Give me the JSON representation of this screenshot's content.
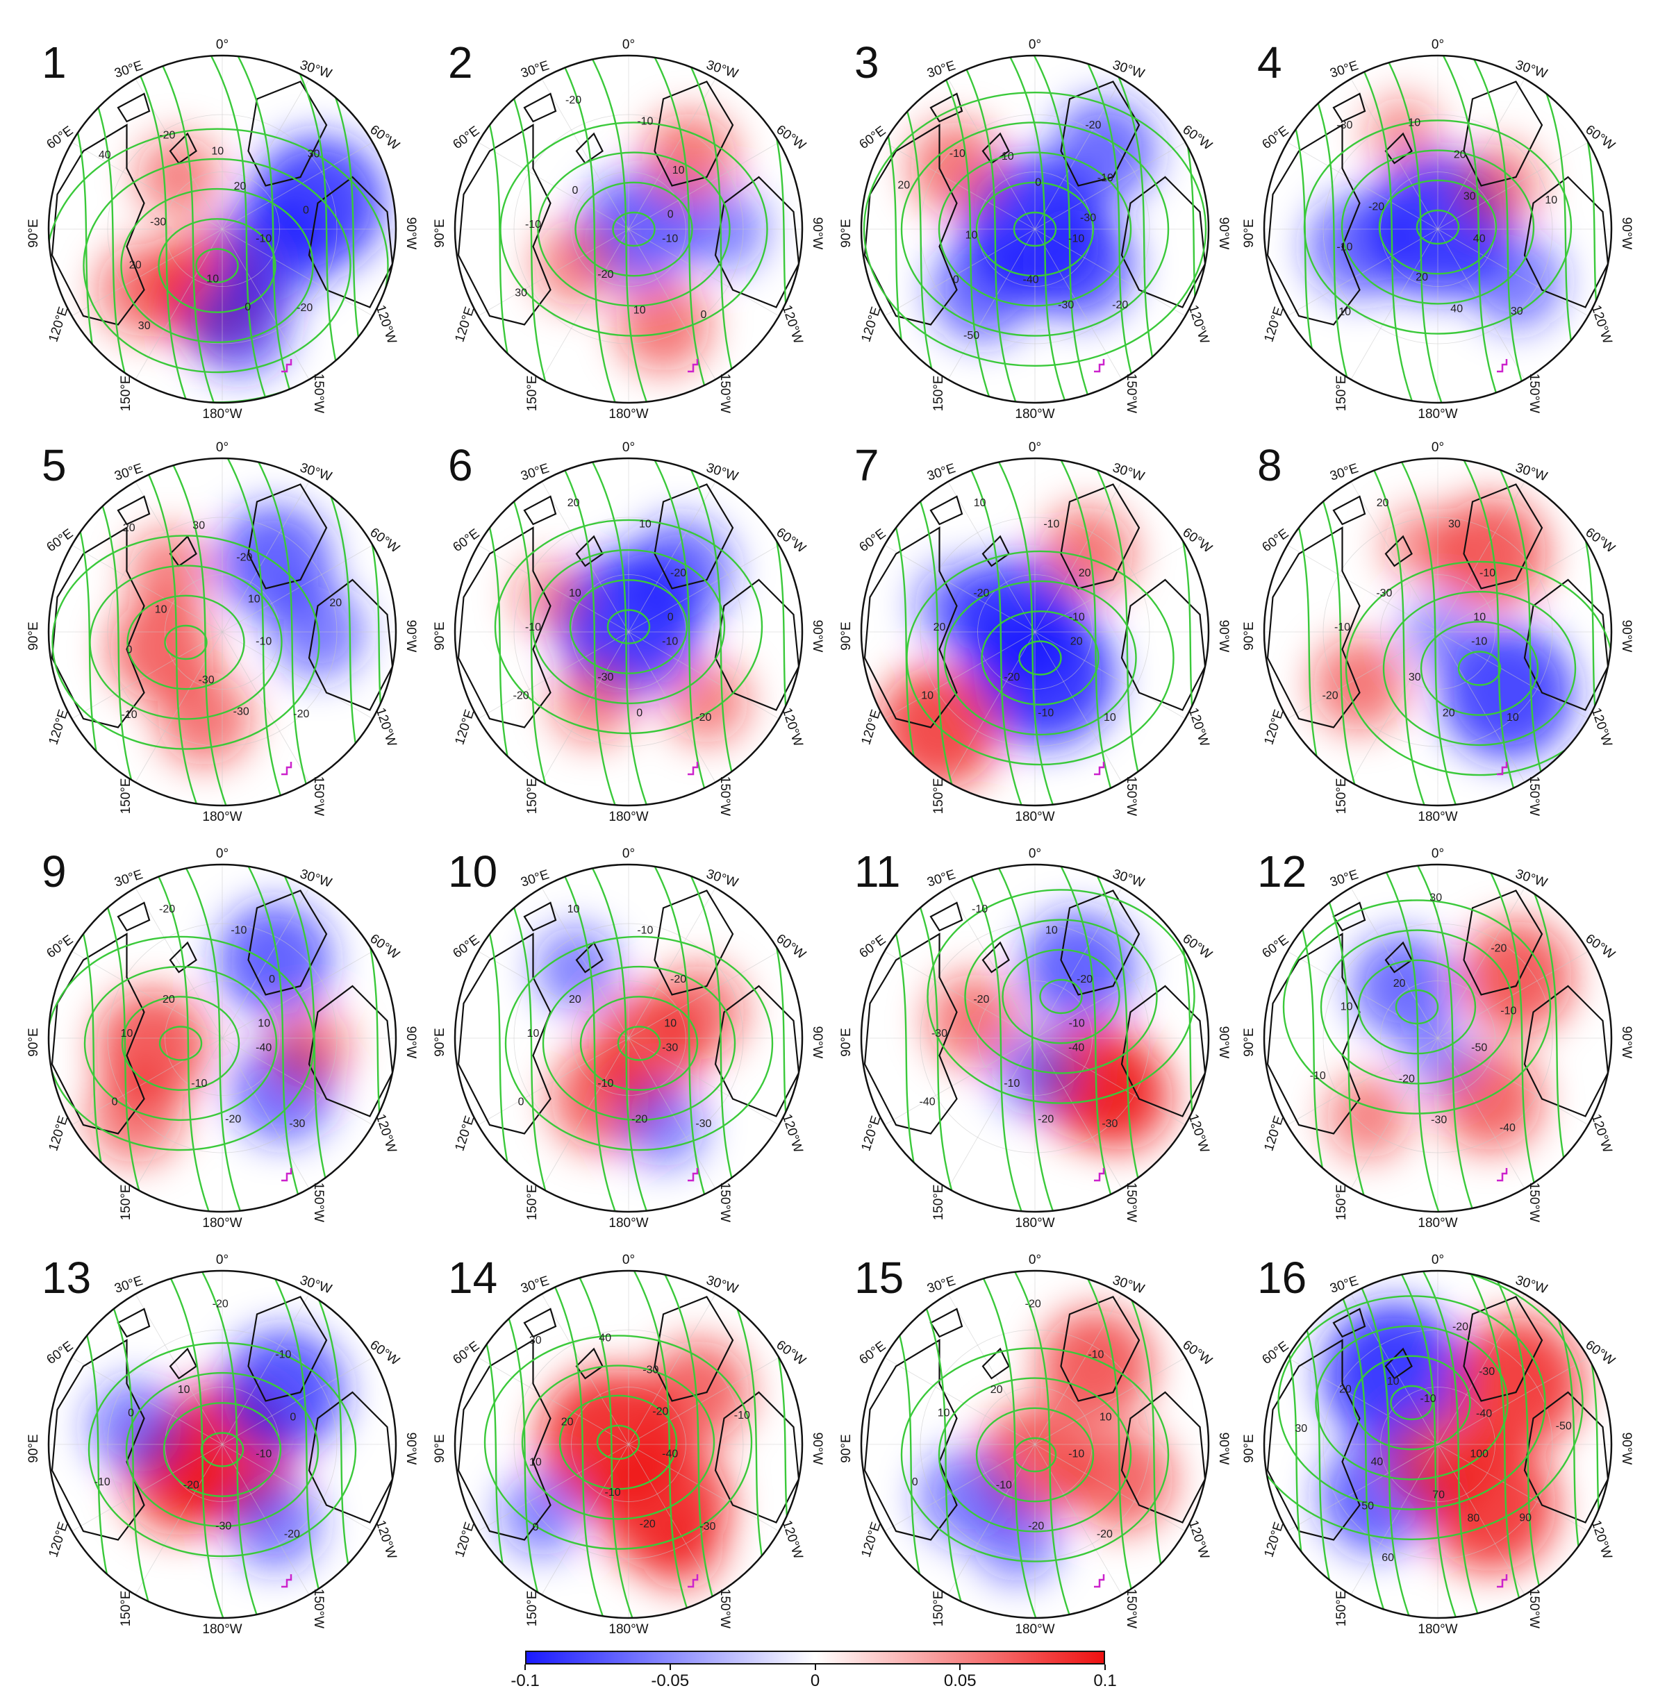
{
  "figure": {
    "panels": [
      {
        "number": "1",
        "anomaly": [
          [
            -0.05,
            0.35,
            0.07
          ],
          [
            0.3,
            0.1,
            -0.06
          ],
          [
            0.55,
            -0.15,
            -0.08
          ],
          [
            -0.45,
            0.35,
            0.04
          ],
          [
            0.1,
            0.55,
            -0.05
          ],
          [
            -0.25,
            -0.3,
            0.03
          ]
        ],
        "contour_labels": [
          "-10",
          "-20",
          "0",
          "10",
          "30",
          "20",
          "-30",
          "40",
          "-20",
          "10",
          "20",
          "30",
          "0"
        ]
      },
      {
        "number": "2",
        "anomaly": [
          [
            0.05,
            0.0,
            -0.06
          ],
          [
            0.35,
            -0.4,
            0.04
          ],
          [
            -0.3,
            0.2,
            0.03
          ],
          [
            0.2,
            0.55,
            0.04
          ],
          [
            0.55,
            0.0,
            -0.03
          ]
        ],
        "contour_labels": [
          "-10",
          "0",
          "10",
          "-20",
          "30",
          "-10",
          "0",
          "-20",
          "-10",
          "10",
          "0"
        ]
      },
      {
        "number": "3",
        "anomaly": [
          [
            0.0,
            0.0,
            -0.09
          ],
          [
            0.25,
            0.2,
            -0.06
          ],
          [
            -0.3,
            0.35,
            -0.05
          ],
          [
            -0.45,
            -0.35,
            0.04
          ],
          [
            0.4,
            -0.45,
            -0.05
          ]
        ],
        "contour_labels": [
          "-10",
          "-20",
          "-30",
          "-40",
          "-50",
          "0",
          "10",
          "20",
          "-10",
          "10",
          "0",
          "-20",
          "-10",
          "-30"
        ]
      },
      {
        "number": "4",
        "anomaly": [
          [
            0.0,
            -0.02,
            -0.09
          ],
          [
            -0.45,
            0.1,
            -0.05
          ],
          [
            0.45,
            0.3,
            -0.04
          ],
          [
            0.35,
            -0.25,
            0.03
          ],
          [
            -0.2,
            -0.55,
            0.02
          ]
        ],
        "contour_labels": [
          "40",
          "30",
          "40",
          "20",
          "10",
          "-10",
          "-20",
          "-30",
          "10",
          "20",
          "30",
          "10"
        ]
      },
      {
        "number": "5",
        "anomaly": [
          [
            -0.35,
            0.1,
            0.05
          ],
          [
            0.3,
            -0.4,
            -0.06
          ],
          [
            -0.1,
            0.5,
            0.04
          ],
          [
            0.55,
            0.0,
            -0.04
          ],
          [
            -0.3,
            -0.35,
            0.03
          ]
        ],
        "contour_labels": [
          "-10",
          "-20",
          "-30",
          "-30",
          "-10",
          "0",
          "10",
          "20",
          "30",
          "-20",
          "10",
          "20"
        ]
      },
      {
        "number": "6",
        "anomaly": [
          [
            0.0,
            -0.05,
            -0.09
          ],
          [
            0.3,
            -0.35,
            -0.05
          ],
          [
            -0.2,
            0.4,
            0.03
          ],
          [
            0.45,
            0.4,
            0.03
          ],
          [
            -0.45,
            -0.2,
            0.02
          ]
        ],
        "contour_labels": [
          "-10",
          "-20",
          "0",
          "-30",
          "-20",
          "-10",
          "10",
          "20",
          "10",
          "-20",
          "0"
        ]
      },
      {
        "number": "7",
        "anomaly": [
          [
            0.05,
            0.25,
            -0.09
          ],
          [
            -0.1,
            -0.05,
            -0.08
          ],
          [
            0.3,
            -0.45,
            0.04
          ],
          [
            -0.55,
            0.55,
            0.07
          ],
          [
            -0.45,
            -0.15,
            -0.03
          ]
        ],
        "contour_labels": [
          "20",
          "10",
          "-10",
          "-20",
          "10",
          "20",
          "-20",
          "10",
          "-10",
          "20",
          "-10"
        ]
      },
      {
        "number": "8",
        "anomaly": [
          [
            0.4,
            0.35,
            -0.08
          ],
          [
            0.3,
            -0.45,
            0.06
          ],
          [
            -0.45,
            0.3,
            0.04
          ],
          [
            0.0,
            0.0,
            -0.02
          ],
          [
            -0.1,
            -0.5,
            0.02
          ]
        ],
        "contour_labels": [
          "-10",
          "10",
          "20",
          "30",
          "-20",
          "-10",
          "-30",
          "20",
          "30",
          "-10",
          "10"
        ]
      },
      {
        "number": "9",
        "anomaly": [
          [
            -0.4,
            0.05,
            0.06
          ],
          [
            0.3,
            -0.45,
            -0.06
          ],
          [
            0.35,
            0.3,
            -0.05
          ],
          [
            -0.5,
            0.45,
            0.04
          ],
          [
            0.5,
            0.05,
            0.03
          ]
        ],
        "contour_labels": [
          "-40",
          "-30",
          "-20",
          "-10",
          "0",
          "10",
          "20",
          "-20",
          "-10",
          "0",
          "10"
        ]
      },
      {
        "number": "10",
        "anomaly": [
          [
            0.1,
            0.05,
            0.06
          ],
          [
            -0.15,
            0.35,
            0.05
          ],
          [
            0.4,
            -0.15,
            0.04
          ],
          [
            -0.3,
            -0.4,
            -0.03
          ],
          [
            0.2,
            0.5,
            -0.03
          ]
        ],
        "contour_labels": [
          "-30",
          "-30",
          "-20",
          "-10",
          "0",
          "10",
          "20",
          "10",
          "-10",
          "-20",
          "10"
        ]
      },
      {
        "number": "11",
        "anomaly": [
          [
            0.25,
            -0.4,
            -0.06
          ],
          [
            0.35,
            0.25,
            0.07
          ],
          [
            -0.35,
            -0.1,
            0.04
          ],
          [
            0.5,
            0.35,
            0.05
          ],
          [
            0.0,
            0.2,
            -0.03
          ]
        ],
        "contour_labels": [
          "-40",
          "-30",
          "-20",
          "-10",
          "-40",
          "-30",
          "-20",
          "-10",
          "10",
          "-20",
          "-10"
        ]
      },
      {
        "number": "12",
        "anomaly": [
          [
            -0.2,
            -0.3,
            -0.05
          ],
          [
            0.45,
            -0.35,
            0.06
          ],
          [
            0.3,
            0.35,
            0.05
          ],
          [
            -0.4,
            0.45,
            0.03
          ],
          [
            0.0,
            0.1,
            -0.02
          ]
        ],
        "contour_labels": [
          "-50",
          "-40",
          "-30",
          "-20",
          "-10",
          "10",
          "20",
          "30",
          "-20",
          "-10"
        ]
      },
      {
        "number": "13",
        "anomaly": [
          [
            0.0,
            0.05,
            0.09
          ],
          [
            -0.25,
            0.2,
            0.06
          ],
          [
            0.35,
            -0.3,
            -0.07
          ],
          [
            -0.5,
            -0.1,
            -0.04
          ],
          [
            0.3,
            0.45,
            -0.04
          ]
        ],
        "contour_labels": [
          "-10",
          "-20",
          "-30",
          "-20",
          "-10",
          "0",
          "10",
          "-20",
          "-10",
          "0"
        ]
      },
      {
        "number": "14",
        "anomaly": [
          [
            -0.1,
            -0.02,
            0.09
          ],
          [
            0.2,
            0.35,
            0.08
          ],
          [
            0.4,
            -0.3,
            0.05
          ],
          [
            -0.5,
            0.4,
            -0.03
          ],
          [
            0.3,
            0.6,
            0.03
          ]
        ],
        "contour_labels": [
          "-40",
          "-30",
          "-20",
          "-10",
          "0",
          "10",
          "20",
          "30",
          "40",
          "-30",
          "-20",
          "-10"
        ]
      },
      {
        "number": "15",
        "anomaly": [
          [
            0.0,
            0.1,
            0.06
          ],
          [
            0.35,
            -0.45,
            0.06
          ],
          [
            0.5,
            0.2,
            0.05
          ],
          [
            -0.4,
            0.3,
            -0.04
          ],
          [
            -0.1,
            0.55,
            -0.03
          ]
        ],
        "contour_labels": [
          "-10",
          "-20",
          "-20",
          "-10",
          "0",
          "10",
          "20",
          "-20",
          "-10",
          "10"
        ]
      },
      {
        "number": "16",
        "anomaly": [
          [
            -0.25,
            -0.4,
            -0.09
          ],
          [
            0.3,
            0.35,
            0.08
          ],
          [
            0.45,
            -0.35,
            0.08
          ],
          [
            -0.35,
            0.3,
            -0.06
          ],
          [
            0.0,
            0.1,
            0.05
          ]
        ],
        "contour_labels": [
          "100",
          "90",
          "80",
          "70",
          "60",
          "50",
          "40",
          "30",
          "20",
          "10",
          "-10",
          "-20",
          "-30",
          "-40",
          "-50"
        ]
      }
    ],
    "longitude_labels": {
      "top": "0°",
      "top_right": "30°W",
      "upper_right": "60°W",
      "right": "90°W",
      "lower_right": "120°W",
      "bottom_right": "150°W",
      "bottom": "180°W",
      "bottom_left": "150°E",
      "lower_left": "120°E",
      "left": "90°E",
      "upper_left": "60°E",
      "top_left": "30°E"
    },
    "colors": {
      "negative": "#1a1aff",
      "neutral": "#ffffff",
      "positive": "#ee1111",
      "contour": "#3ac93a",
      "coastline": "#111111",
      "marker": "#cc22cc"
    },
    "colorbar": {
      "min": -0.1,
      "max": 0.1,
      "tick_labels": [
        "-0.1",
        "-0.05",
        "0",
        "0.05",
        "0.1"
      ],
      "tick_values": [
        -0.1,
        -0.05,
        0,
        0.05,
        0.1
      ]
    }
  }
}
